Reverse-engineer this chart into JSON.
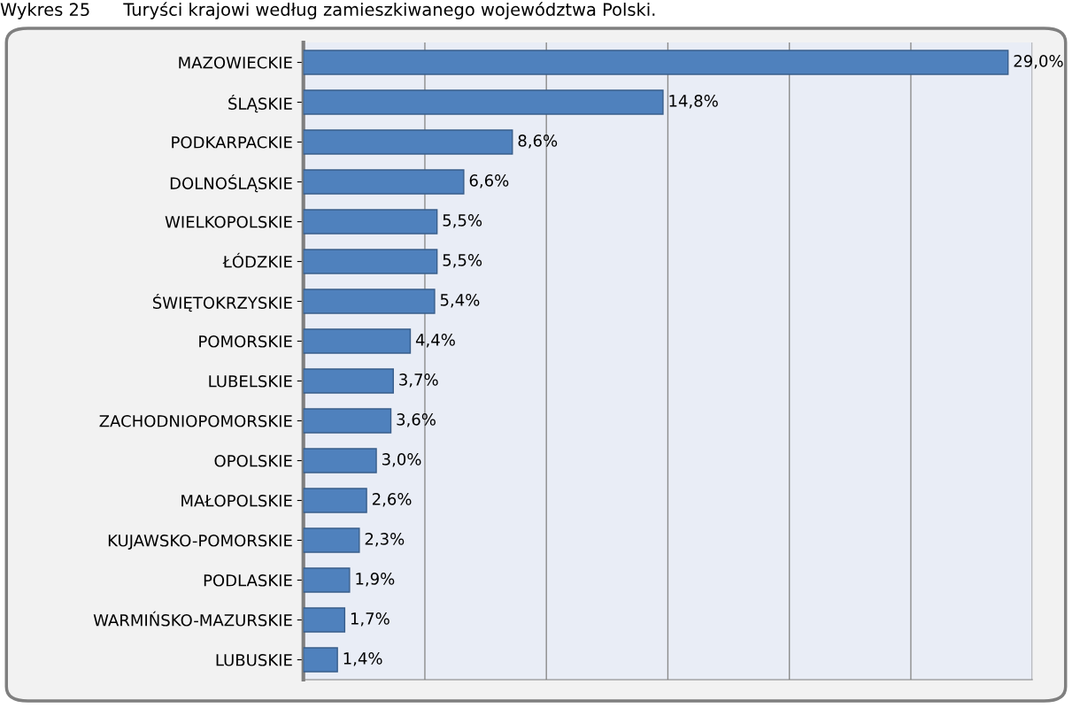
{
  "chart_data": {
    "type": "bar",
    "orientation": "horizontal",
    "title": "Wykres 25      Turyści krajowi według zamieszkiwanego województwa Polski.",
    "categories": [
      "MAZOWIECKIE",
      "ŚLĄSKIE",
      "PODKARPACKIE",
      "DOLNOŚLĄSKIE",
      "WIELKOPOLSKIE",
      "ŁÓDZKIE",
      "ŚWIĘTOKRZYSKIE",
      "POMORSKIE",
      "LUBELSKIE",
      "ZACHODNIOPOMORSKIE",
      "OPOLSKIE",
      "MAŁOPOLSKIE",
      "KUJAWSKO-POMORSKIE",
      "PODLASKIE",
      "WARMIŃSKO-MAZURSKIE",
      "LUBUSKIE"
    ],
    "values": [
      29.0,
      14.8,
      8.6,
      6.6,
      5.5,
      5.5,
      5.4,
      4.4,
      3.7,
      3.6,
      3.0,
      2.6,
      2.3,
      1.9,
      1.7,
      1.4
    ],
    "value_labels": [
      "29,0%",
      "14,8%",
      "8,6%",
      "6,6%",
      "5,5%",
      "5,5%",
      "5,4%",
      "4,4%",
      "3,7%",
      "3,6%",
      "3,0%",
      "2,6%",
      "2,3%",
      "1,9%",
      "1,7%",
      "1,4%"
    ],
    "color": "#4f81bd",
    "xlim": [
      0,
      30
    ],
    "xticks": [
      {
        "value": 0,
        "label": null
      },
      {
        "value": 5,
        "label": null
      },
      {
        "value": 10,
        "label": null
      },
      {
        "value": 15,
        "label": null
      },
      {
        "value": 20,
        "label": null
      },
      {
        "value": 25,
        "label": null
      },
      {
        "value": 30,
        "label": null
      }
    ],
    "grid": "x",
    "tick_labels": "y"
  }
}
